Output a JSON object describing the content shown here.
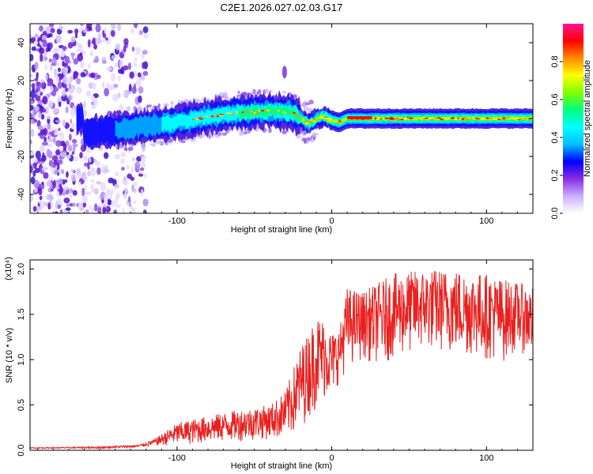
{
  "title": "C2E1.2026.027.02.03.G17",
  "colors": {
    "snr_line": "#e8211f",
    "background": "#ffffff",
    "frame": "#000000"
  },
  "chart_data": [
    {
      "type": "heatmap",
      "name": "spectrogram",
      "xlabel": "Height of straight line (km)",
      "ylabel": "Frequency (Hz)",
      "xlim": [
        -195,
        130
      ],
      "ylim": [
        -50,
        50
      ],
      "xticks": [
        -100,
        0,
        100
      ],
      "yticks": [
        -40,
        -20,
        0,
        20,
        40
      ],
      "xtick_labels": [
        "-100",
        "0",
        "100"
      ],
      "ytick_labels": [
        "-40",
        "-20",
        "0",
        "20",
        "40"
      ],
      "ridge_centerline": [
        [
          -160,
          -8
        ],
        [
          -140,
          -6
        ],
        [
          -120,
          -4
        ],
        [
          -100,
          -2
        ],
        [
          -80,
          1
        ],
        [
          -60,
          3
        ],
        [
          -40,
          4
        ],
        [
          -25,
          3
        ],
        [
          -20,
          0
        ],
        [
          -15,
          -3
        ],
        [
          -10,
          0
        ],
        [
          -5,
          1
        ],
        [
          0,
          -1
        ],
        [
          5,
          -2
        ],
        [
          10,
          0
        ],
        [
          20,
          0
        ],
        [
          60,
          0
        ],
        [
          100,
          0
        ],
        [
          130,
          0
        ]
      ],
      "isolated_feature": {
        "x": [
          -33,
          -28
        ],
        "y": [
          22,
          27
        ]
      },
      "colorbar": {
        "label": "Normalized spectral amplitude",
        "range": [
          0,
          1
        ],
        "ticks": [
          0.0,
          0.2,
          0.4,
          0.6,
          0.8
        ],
        "tick_labels": [
          "0.0",
          "0.2",
          "0.4",
          "0.6",
          "0.8"
        ],
        "colormap": [
          "#ffffff",
          "#c9b0ff",
          "#8a2be2",
          "#0000ff",
          "#00bfff",
          "#00ffff",
          "#00ff7f",
          "#7fff00",
          "#ffff00",
          "#ff8c00",
          "#ff0000",
          "#ff1493"
        ]
      }
    },
    {
      "type": "line",
      "name": "snr",
      "xlabel": "Height of straight line (km)",
      "ylabel": "SNR (10 * v/v)",
      "y_scale_label": "(x10⁴)",
      "xlim": [
        -195,
        130
      ],
      "ylim": [
        0,
        2.1
      ],
      "xticks": [
        -100,
        0,
        100
      ],
      "yticks": [
        0.0,
        0.5,
        1.0,
        1.5,
        2.0
      ],
      "xtick_labels": [
        "-100",
        "0",
        "100"
      ],
      "ytick_labels": [
        "0.0",
        "0.5",
        "1.0",
        "1.5",
        "2.0"
      ],
      "envelope": [
        [
          -195,
          0.02,
          0.03
        ],
        [
          -150,
          0.02,
          0.04
        ],
        [
          -125,
          0.03,
          0.06
        ],
        [
          -115,
          0.05,
          0.12
        ],
        [
          -100,
          0.05,
          0.3
        ],
        [
          -80,
          0.08,
          0.38
        ],
        [
          -60,
          0.1,
          0.45
        ],
        [
          -40,
          0.12,
          0.5
        ],
        [
          -30,
          0.12,
          0.65
        ],
        [
          -25,
          0.15,
          0.9
        ],
        [
          -20,
          0.25,
          1.15
        ],
        [
          -15,
          0.35,
          1.3
        ],
        [
          -10,
          0.45,
          1.5
        ],
        [
          -5,
          0.55,
          1.45
        ],
        [
          0,
          0.6,
          1.3
        ],
        [
          5,
          0.75,
          1.35
        ],
        [
          10,
          0.9,
          1.8
        ],
        [
          20,
          1.0,
          1.75
        ],
        [
          30,
          0.95,
          1.85
        ],
        [
          40,
          1.0,
          1.95
        ],
        [
          60,
          1.1,
          2.0
        ],
        [
          80,
          1.05,
          2.0
        ],
        [
          100,
          1.0,
          1.95
        ],
        [
          110,
          0.95,
          1.9
        ],
        [
          120,
          1.1,
          1.85
        ],
        [
          130,
          1.0,
          1.8
        ]
      ]
    }
  ]
}
